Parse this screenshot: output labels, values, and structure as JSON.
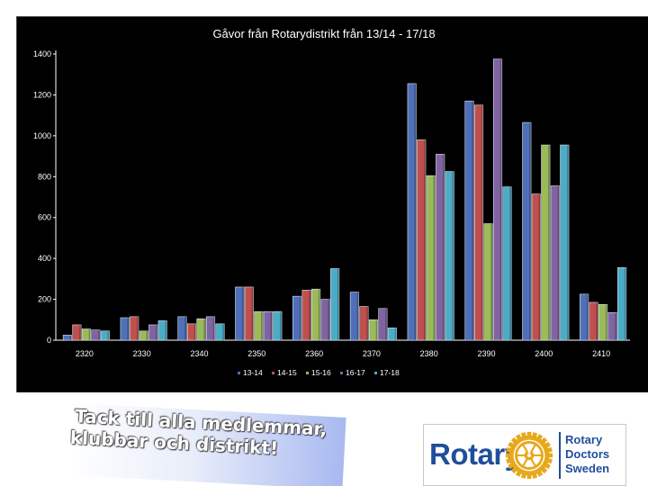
{
  "chart_data": {
    "type": "bar",
    "title": "Gåvor från Rotarydistrikt från 13/14 - 17/18",
    "categories": [
      "2320",
      "2330",
      "2340",
      "2350",
      "2360",
      "2370",
      "2380",
      "2390",
      "2400",
      "2410"
    ],
    "ylim": [
      0,
      1400
    ],
    "yticks": [
      "0",
      "200",
      "400",
      "600",
      "800",
      "1000",
      "1200",
      "1400"
    ],
    "grid": false,
    "legend_position": "bottom",
    "series": [
      {
        "name": "13-14",
        "color": "#4f6fb8",
        "values": [
          25,
          110,
          115,
          260,
          215,
          235,
          1255,
          1170,
          1065,
          225
        ]
      },
      {
        "name": "14-15",
        "color": "#c0504d",
        "values": [
          75,
          115,
          80,
          260,
          245,
          165,
          980,
          1150,
          715,
          185
        ]
      },
      {
        "name": "15-16",
        "color": "#9bbb59",
        "values": [
          55,
          45,
          105,
          140,
          250,
          100,
          805,
          570,
          955,
          175
        ]
      },
      {
        "name": "16-17",
        "color": "#8064a2",
        "values": [
          50,
          75,
          115,
          140,
          200,
          155,
          910,
          1375,
          755,
          135
        ]
      },
      {
        "name": "17-18",
        "color": "#4bacc6",
        "values": [
          45,
          95,
          80,
          140,
          350,
          60,
          825,
          750,
          955,
          355
        ]
      }
    ]
  },
  "note": {
    "line1": "Tack till alla medlemmar,",
    "line2": "klubbar och distrikt!"
  },
  "logo": {
    "word": "Rotary",
    "org_line1": "Rotary",
    "org_line2": "Doctors",
    "org_line3": "Sweden",
    "brand_color": "#1f4e9c",
    "wheel_color": "#e8a81c"
  }
}
